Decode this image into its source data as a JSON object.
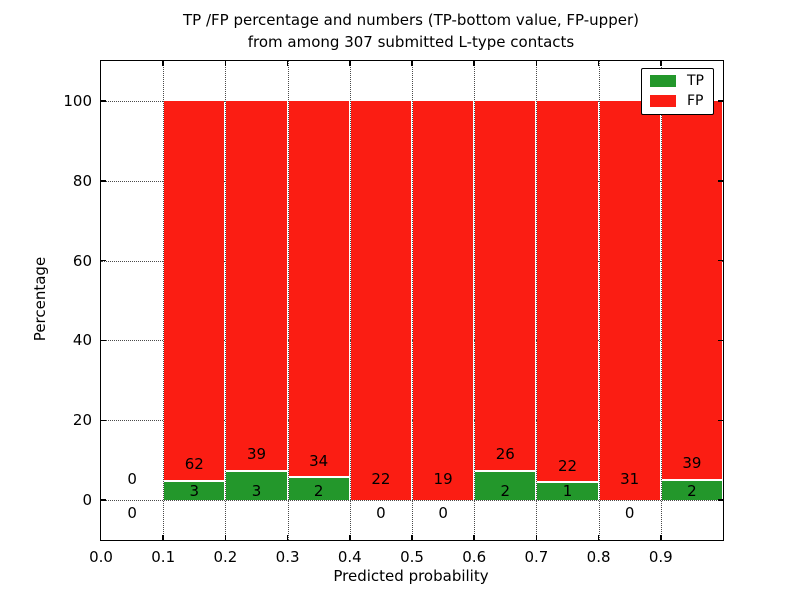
{
  "chart_data": {
    "type": "bar",
    "stacked": true,
    "title_line1": "TP /FP percentage and numbers (TP-bottom value, FP-upper)",
    "title_line2": "from among 307 submitted L-type contacts",
    "xlabel": "Predicted probability",
    "ylabel": "Percentage",
    "total_contacts": 307,
    "xlim": [
      0.0,
      1.0
    ],
    "ylim": [
      -10,
      110
    ],
    "grid": "dotted",
    "legend_position": "upper right",
    "xticks": [
      {
        "value": 0.0,
        "label": "0.0"
      },
      {
        "value": 0.1,
        "label": "0.1"
      },
      {
        "value": 0.2,
        "label": "0.2"
      },
      {
        "value": 0.3,
        "label": "0.3"
      },
      {
        "value": 0.4,
        "label": "0.4"
      },
      {
        "value": 0.5,
        "label": "0.5"
      },
      {
        "value": 0.6,
        "label": "0.6"
      },
      {
        "value": 0.7,
        "label": "0.7"
      },
      {
        "value": 0.8,
        "label": "0.8"
      },
      {
        "value": 0.9,
        "label": "0.9"
      }
    ],
    "yticks": [
      {
        "value": 0,
        "label": "0"
      },
      {
        "value": 20,
        "label": "20"
      },
      {
        "value": 40,
        "label": "40"
      },
      {
        "value": 60,
        "label": "60"
      },
      {
        "value": 80,
        "label": "80"
      },
      {
        "value": 100,
        "label": "100"
      }
    ],
    "legend": [
      {
        "name": "TP",
        "color": "#23972b"
      },
      {
        "name": "FP",
        "color": "#fb1d13"
      }
    ],
    "colors": {
      "tp": "#23972b",
      "fp": "#fb1d13",
      "bar_edge": "#ffffff",
      "grid": "#4a4a4a"
    },
    "bins": [
      {
        "range": [
          0.0,
          0.1
        ],
        "tp_count": 0,
        "fp_count": 0,
        "tp_pct": 0,
        "fp_pct": 0
      },
      {
        "range": [
          0.1,
          0.2
        ],
        "tp_count": 3,
        "fp_count": 62,
        "tp_pct": 4.62,
        "fp_pct": 95.38
      },
      {
        "range": [
          0.2,
          0.3
        ],
        "tp_count": 3,
        "fp_count": 39,
        "tp_pct": 7.14,
        "fp_pct": 92.86
      },
      {
        "range": [
          0.3,
          0.4
        ],
        "tp_count": 2,
        "fp_count": 34,
        "tp_pct": 5.56,
        "fp_pct": 94.44
      },
      {
        "range": [
          0.4,
          0.5
        ],
        "tp_count": 0,
        "fp_count": 22,
        "tp_pct": 0,
        "fp_pct": 100
      },
      {
        "range": [
          0.5,
          0.6
        ],
        "tp_count": 0,
        "fp_count": 19,
        "tp_pct": 0,
        "fp_pct": 100
      },
      {
        "range": [
          0.6,
          0.7
        ],
        "tp_count": 2,
        "fp_count": 26,
        "tp_pct": 7.14,
        "fp_pct": 92.86
      },
      {
        "range": [
          0.7,
          0.8
        ],
        "tp_count": 1,
        "fp_count": 22,
        "tp_pct": 4.35,
        "fp_pct": 95.65
      },
      {
        "range": [
          0.8,
          0.9
        ],
        "tp_count": 0,
        "fp_count": 31,
        "tp_pct": 0,
        "fp_pct": 100
      },
      {
        "range": [
          0.9,
          1.0
        ],
        "tp_count": 2,
        "fp_count": 39,
        "tp_pct": 4.88,
        "fp_pct": 95.12
      }
    ]
  }
}
